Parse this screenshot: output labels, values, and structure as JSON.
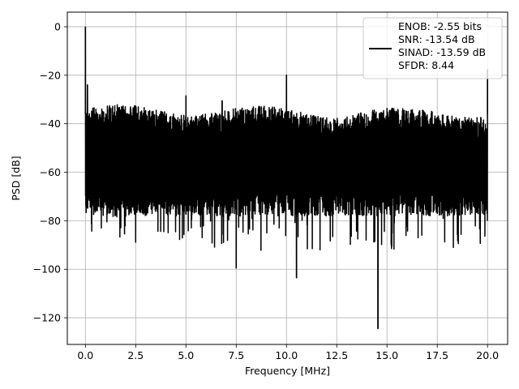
{
  "chart_data": {
    "type": "line",
    "title": "",
    "xlabel": "Frequency [MHz]",
    "ylabel": "PSD [dB]",
    "xlim": [
      -0.9,
      21.0
    ],
    "ylim": [
      -131,
      6
    ],
    "xticks": [
      0.0,
      2.5,
      5.0,
      7.5,
      10.0,
      12.5,
      15.0,
      17.5,
      20.0
    ],
    "xtick_labels": [
      "0.0",
      "2.5",
      "5.0",
      "7.5",
      "10.0",
      "12.5",
      "15.0",
      "17.5",
      "20.0"
    ],
    "yticks": [
      0,
      -20,
      -40,
      -60,
      -80,
      -100,
      -120
    ],
    "ytick_labels": [
      "0",
      "−20",
      "−40",
      "−60",
      "−80",
      "−100",
      "−120"
    ],
    "grid": true,
    "legend_position": "top-right",
    "legend_lines": [
      "ENOB: -2.55 bits",
      "SNR: -13.54 dB",
      "SINAD: -13.59 dB",
      "SFDR: 8.44"
    ],
    "series_color": "#000000",
    "noise_floor": {
      "x_range": [
        0.0,
        20.0
      ],
      "upper_envelope_db": -34,
      "lower_envelope_db": -76
    },
    "peaks": [
      {
        "x": 0.0,
        "y": 0.0
      },
      {
        "x": 0.1,
        "y": -24.0
      },
      {
        "x": 5.0,
        "y": -28.5
      },
      {
        "x": 6.8,
        "y": -30.5
      },
      {
        "x": 10.0,
        "y": -20.0
      },
      {
        "x": 20.0,
        "y": -17.5
      }
    ],
    "dips": [
      {
        "x": 7.5,
        "y": -99.5
      },
      {
        "x": 10.5,
        "y": -103.5
      },
      {
        "x": 14.55,
        "y": -124.5
      }
    ]
  }
}
